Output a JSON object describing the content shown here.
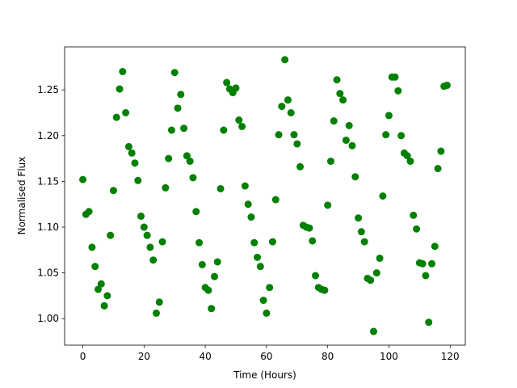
{
  "chart_data": {
    "type": "scatter",
    "xlabel": "Time (Hours)",
    "ylabel": "Normalised Flux",
    "color": "#008000",
    "x": [
      0,
      1,
      2,
      3,
      4,
      5,
      6,
      7,
      8,
      9,
      10,
      11,
      12,
      13,
      14,
      15,
      16,
      17,
      18,
      19,
      20,
      21,
      22,
      23,
      24,
      25,
      26,
      27,
      28,
      29,
      30,
      31,
      32,
      33,
      34,
      35,
      36,
      37,
      38,
      39,
      40,
      41,
      42,
      43,
      44,
      45,
      46,
      47,
      48,
      49,
      50,
      51,
      52,
      53,
      54,
      55,
      56,
      57,
      58,
      59,
      60,
      61,
      62,
      63,
      64,
      65,
      66,
      67,
      68,
      69,
      70,
      71,
      72,
      73,
      74,
      75,
      76,
      77,
      78,
      79,
      80,
      81,
      82,
      83,
      84,
      85,
      86,
      87,
      88,
      89,
      90,
      91,
      92,
      93,
      94,
      95,
      96,
      97,
      98,
      99,
      100,
      101,
      102,
      103,
      104,
      105,
      106,
      107,
      108,
      109,
      110,
      111,
      112,
      113,
      114,
      115,
      116,
      117,
      118,
      119
    ],
    "values": [
      1.152,
      1.114,
      1.117,
      1.078,
      1.057,
      1.032,
      1.038,
      1.014,
      1.025,
      1.091,
      1.14,
      1.22,
      1.251,
      1.27,
      1.225,
      1.188,
      1.181,
      1.17,
      1.151,
      1.112,
      1.1,
      1.091,
      1.078,
      1.064,
      1.006,
      1.018,
      1.084,
      1.143,
      1.175,
      1.206,
      1.269,
      1.23,
      1.245,
      1.208,
      1.178,
      1.172,
      1.154,
      1.117,
      1.083,
      1.059,
      1.034,
      1.031,
      1.011,
      1.046,
      1.062,
      1.142,
      1.206,
      1.258,
      1.251,
      1.247,
      1.252,
      1.217,
      1.21,
      1.145,
      1.125,
      1.111,
      1.083,
      1.067,
      1.057,
      1.02,
      1.006,
      1.034,
      1.084,
      1.13,
      1.201,
      1.232,
      1.283,
      1.239,
      1.225,
      1.201,
      1.191,
      1.166,
      1.102,
      1.1,
      1.099,
      1.085,
      1.047,
      1.034,
      1.032,
      1.031,
      1.124,
      1.172,
      1.216,
      1.261,
      1.246,
      1.239,
      1.195,
      1.211,
      1.189,
      1.155,
      1.11,
      1.095,
      1.084,
      1.044,
      1.042,
      0.986,
      1.05,
      1.066,
      1.134,
      1.201,
      1.222,
      1.264,
      1.264,
      1.249,
      1.2,
      1.181,
      1.178,
      1.172,
      1.113,
      1.098,
      1.061,
      1.06,
      1.047,
      0.996,
      1.06,
      1.079,
      1.164,
      1.183,
      1.254,
      1.255
    ],
    "xlim": [
      -5.95,
      124.95
    ],
    "xticks": [
      0,
      20,
      40,
      60,
      80,
      100,
      120
    ],
    "ylim": [
      0.971,
      1.297
    ],
    "yticks": [
      {
        "value": 1,
        "label": "1.00"
      },
      1.05,
      {
        "value": 1.1,
        "label": "1.10"
      },
      1.15,
      {
        "value": 1.2,
        "label": "1.20"
      },
      1.25
    ],
    "grid": false
  }
}
